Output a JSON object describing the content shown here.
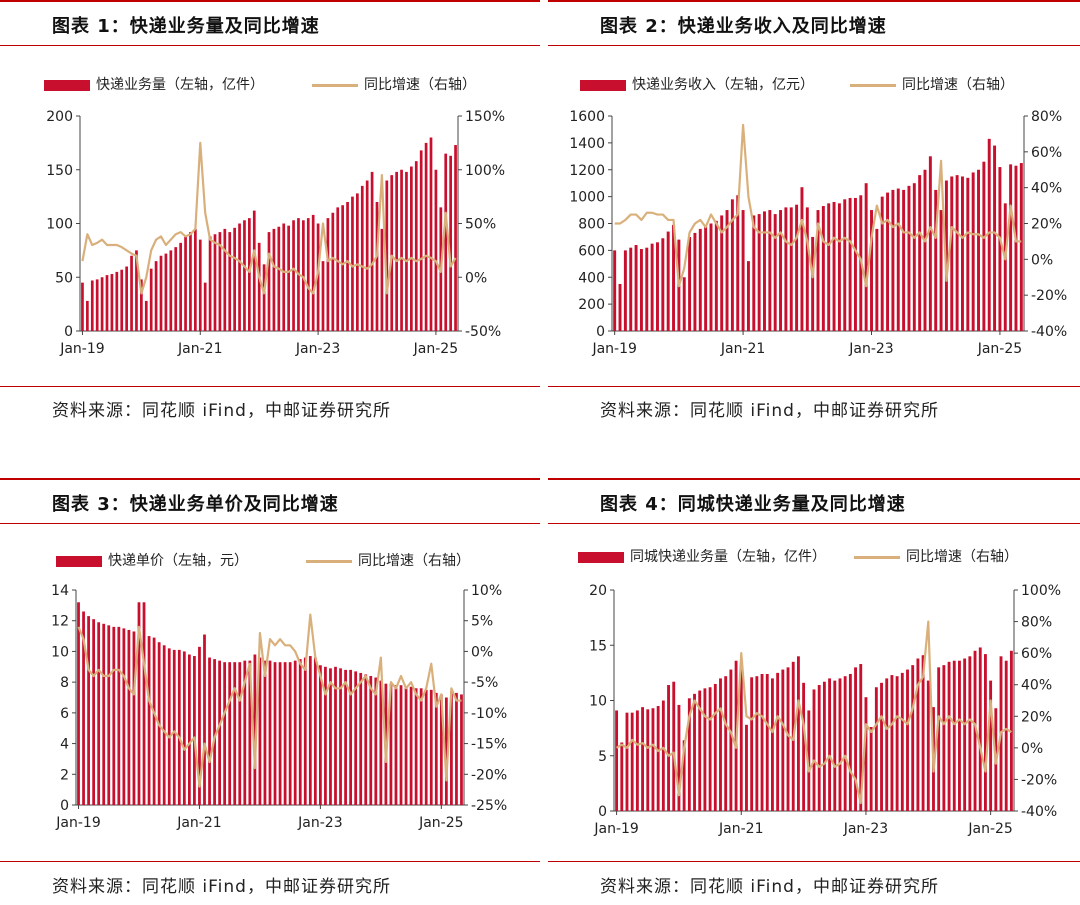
{
  "source_text": "资料来源：同花顺 iFind，中邮证券研究所",
  "chart_data": [
    {
      "type": "bar",
      "title": "图表 1：快递业务量及同比增速",
      "legend": [
        "快递业务量（左轴，亿件）",
        "同比增速（右轴）"
      ],
      "x_tick_labels": [
        "Jan-19",
        "Jan-21",
        "Jan-23",
        "Jan-25"
      ],
      "y_left": {
        "ticks": [
          "0",
          "50",
          "100",
          "150",
          "200"
        ],
        "range": [
          0,
          200
        ]
      },
      "y_right": {
        "ticks": [
          "-50%",
          "0%",
          "50%",
          "100%",
          "150%"
        ],
        "range": [
          -50,
          150
        ]
      },
      "series": [
        {
          "name": "快递业务量（左轴，亿件）",
          "type": "bar",
          "axis": "left",
          "values": [
            45,
            28,
            47,
            48,
            50,
            52,
            53,
            55,
            57,
            60,
            70,
            75,
            48,
            28,
            58,
            65,
            70,
            72,
            75,
            78,
            82,
            88,
            92,
            95,
            85,
            45,
            88,
            90,
            92,
            95,
            92,
            96,
            100,
            103,
            105,
            112,
            82,
            62,
            92,
            95,
            97,
            100,
            98,
            103,
            105,
            103,
            105,
            108,
            100,
            65,
            105,
            110,
            115,
            117,
            120,
            125,
            128,
            135,
            140,
            148,
            120,
            95,
            140,
            145,
            148,
            150,
            148,
            153,
            158,
            168,
            175,
            180,
            150,
            115,
            165,
            163,
            173
          ]
        },
        {
          "name": "同比增速（右轴）",
          "type": "line",
          "axis": "right",
          "values": [
            15,
            40,
            30,
            32,
            35,
            30,
            30,
            30,
            28,
            25,
            22,
            20,
            -15,
            0,
            25,
            35,
            38,
            30,
            35,
            40,
            42,
            38,
            40,
            45,
            125,
            60,
            35,
            32,
            30,
            25,
            20,
            18,
            15,
            10,
            5,
            25,
            0,
            -15,
            22,
            10,
            8,
            5,
            5,
            8,
            3,
            0,
            -10,
            -15,
            5,
            50,
            15,
            18,
            15,
            12,
            15,
            10,
            12,
            10,
            8,
            12,
            20,
            95,
            -15,
            20,
            15,
            18,
            15,
            18,
            15,
            17,
            20,
            18,
            15,
            5,
            60,
            10,
            18
          ]
        }
      ]
    },
    {
      "type": "bar",
      "title": "图表 2：快递业务收入及同比增速",
      "legend": [
        "快递业务收入（左轴，亿元）",
        "同比增速（右轴）"
      ],
      "x_tick_labels": [
        "Jan-19",
        "Jan-21",
        "Jan-23",
        "Jan-25"
      ],
      "y_left": {
        "ticks": [
          "0",
          "200",
          "400",
          "600",
          "800",
          "1000",
          "1200",
          "1400",
          "1600"
        ],
        "range": [
          0,
          1600
        ]
      },
      "y_right": {
        "ticks": [
          "-40%",
          "-20%",
          "0%",
          "20%",
          "40%",
          "60%",
          "80%"
        ],
        "range": [
          -40,
          80
        ]
      },
      "series": [
        {
          "name": "快递业务收入（左轴，亿元）",
          "type": "bar",
          "axis": "left",
          "values": [
            600,
            350,
            600,
            620,
            640,
            610,
            620,
            650,
            660,
            690,
            740,
            790,
            680,
            400,
            700,
            730,
            760,
            780,
            800,
            820,
            860,
            900,
            980,
            1010,
            900,
            520,
            860,
            870,
            890,
            900,
            870,
            900,
            920,
            920,
            940,
            1070,
            920,
            700,
            900,
            930,
            950,
            960,
            950,
            980,
            990,
            990,
            1010,
            1100,
            900,
            760,
            1000,
            1030,
            1050,
            1060,
            1050,
            1080,
            1100,
            1160,
            1200,
            1300,
            1050,
            900,
            1120,
            1150,
            1160,
            1150,
            1140,
            1180,
            1200,
            1260,
            1430,
            1380,
            1220,
            950,
            1240,
            1230,
            1250
          ]
        },
        {
          "name": "同比增速（右轴）",
          "type": "line",
          "axis": "right",
          "values": [
            20,
            20,
            22,
            25,
            25,
            22,
            26,
            26,
            25,
            25,
            22,
            22,
            -15,
            -5,
            15,
            20,
            22,
            18,
            25,
            20,
            15,
            18,
            22,
            25,
            75,
            35,
            18,
            15,
            15,
            15,
            12,
            15,
            10,
            8,
            12,
            22,
            10,
            -10,
            20,
            10,
            8,
            12,
            10,
            12,
            10,
            5,
            0,
            -15,
            12,
            30,
            20,
            22,
            18,
            20,
            15,
            15,
            12,
            15,
            10,
            18,
            12,
            55,
            -12,
            18,
            15,
            12,
            15,
            14,
            14,
            12,
            15,
            15,
            12,
            0,
            30,
            10,
            10
          ]
        }
      ]
    },
    {
      "type": "bar",
      "title": "图表 3：快递业务单价及同比增速",
      "legend": [
        "快递单价（左轴，元）",
        "同比增速（右轴）"
      ],
      "x_tick_labels": [
        "Jan-19",
        "Jan-21",
        "Jan-23",
        "Jan-25"
      ],
      "y_left": {
        "ticks": [
          "0",
          "2",
          "4",
          "6",
          "8",
          "10",
          "12",
          "14"
        ],
        "range": [
          0,
          14
        ]
      },
      "y_right": {
        "ticks": [
          "-25%",
          "-20%",
          "-15%",
          "-10%",
          "-5%",
          "0%",
          "5%",
          "10%"
        ],
        "range": [
          -25,
          10
        ]
      },
      "series": [
        {
          "name": "快递单价（左轴，元）",
          "type": "bar",
          "axis": "left",
          "values": [
            13.2,
            12.6,
            12.3,
            12.1,
            11.9,
            11.8,
            11.7,
            11.6,
            11.6,
            11.5,
            11.4,
            11.3,
            13.2,
            13.2,
            11.0,
            10.9,
            10.6,
            10.4,
            10.2,
            10.1,
            10.1,
            10.0,
            9.8,
            9.7,
            10.3,
            11.1,
            9.6,
            9.5,
            9.4,
            9.3,
            9.3,
            9.3,
            9.3,
            9.4,
            9.4,
            9.8,
            9.6,
            9.4,
            9.4,
            9.3,
            9.3,
            9.3,
            9.3,
            9.4,
            9.5,
            9.6,
            9.7,
            9.6,
            9.1,
            9.0,
            8.9,
            9.0,
            8.9,
            8.8,
            8.8,
            8.7,
            8.6,
            8.5,
            8.4,
            8.3,
            8.1,
            7.9,
            7.9,
            7.8,
            7.8,
            7.7,
            7.7,
            7.6,
            7.6,
            7.5,
            7.5,
            7.3,
            7.2,
            7.0,
            7.4,
            7.3,
            7.2
          ]
        },
        {
          "name": "同比增速（右轴）",
          "type": "line",
          "axis": "right",
          "values": [
            4,
            2,
            -3,
            -4,
            -3,
            -4,
            -4,
            -3,
            -3,
            -4,
            -6,
            -7,
            4,
            -2,
            -8,
            -10,
            -12,
            -13,
            -14,
            -13,
            -14,
            -16,
            -15,
            -14,
            -22,
            -15,
            -18,
            -14,
            -12,
            -10,
            -8,
            -6,
            -8,
            -5,
            -2,
            -19,
            3,
            -4,
            2,
            1,
            2,
            1,
            1,
            0,
            -2,
            -3,
            6,
            -1,
            -4,
            -7,
            -5,
            -6,
            -6,
            -5,
            -7,
            -6,
            -5,
            -4,
            -6,
            -7,
            -1,
            -18,
            -5,
            -6,
            -4,
            -6,
            -5,
            -7,
            -8,
            -6,
            -2,
            -9,
            -7,
            -21,
            -6,
            -8,
            -8
          ]
        }
      ]
    },
    {
      "type": "bar",
      "title": "图表 4：同城快递业务量及同比增速",
      "legend": [
        "同城快递业务量（左轴，亿件）",
        "同比增速（右轴）"
      ],
      "x_tick_labels": [
        "Jan-19",
        "Jan-21",
        "Jan-23",
        "Jan-25"
      ],
      "y_left": {
        "ticks": [
          "0",
          "5",
          "10",
          "15",
          "20"
        ],
        "range": [
          0,
          20
        ]
      },
      "y_right": {
        "ticks": [
          "-40%",
          "-20%",
          "0%",
          "20%",
          "40%",
          "60%",
          "80%",
          "100%"
        ],
        "range": [
          -40,
          100
        ]
      },
      "series": [
        {
          "name": "同城快递业务量（左轴，亿件）",
          "type": "bar",
          "axis": "left",
          "values": [
            9.1,
            6.2,
            8.9,
            8.9,
            9.1,
            9.4,
            9.2,
            9.3,
            9.5,
            10.0,
            11.4,
            11.7,
            9.6,
            6.4,
            10.2,
            10.6,
            10.9,
            11.1,
            11.2,
            11.5,
            12.0,
            12.2,
            12.8,
            13.6,
            13.2,
            7.8,
            12.1,
            12.2,
            12.4,
            12.4,
            12.0,
            12.5,
            12.8,
            13.0,
            13.5,
            14.0,
            11.6,
            9.1,
            11.0,
            11.4,
            11.7,
            12.0,
            11.8,
            12.0,
            12.2,
            12.4,
            13.0,
            13.3,
            10.3,
            7.6,
            11.2,
            11.6,
            12.0,
            12.3,
            12.2,
            12.5,
            12.8,
            13.2,
            13.8,
            14.1,
            11.8,
            9.4,
            13.0,
            13.2,
            13.5,
            13.6,
            13.6,
            13.8,
            14.0,
            14.5,
            14.8,
            14.2,
            11.8,
            9.3,
            14.0,
            13.6,
            14.5
          ]
        },
        {
          "name": "同比增速（右轴）",
          "type": "line",
          "axis": "right",
          "values": [
            0,
            2,
            0,
            5,
            2,
            3,
            0,
            2,
            -2,
            0,
            -5,
            -3,
            -30,
            0,
            20,
            30,
            25,
            20,
            18,
            22,
            25,
            15,
            10,
            0,
            60,
            20,
            18,
            22,
            20,
            15,
            10,
            20,
            15,
            8,
            5,
            30,
            15,
            -15,
            -8,
            -12,
            -10,
            -5,
            -12,
            -10,
            -5,
            -15,
            -20,
            -35,
            15,
            10,
            15,
            20,
            12,
            15,
            20,
            18,
            15,
            25,
            40,
            45,
            80,
            -15,
            20,
            15,
            20,
            15,
            18,
            15,
            18,
            15,
            0,
            -15,
            30,
            -10,
            10,
            12,
            10
          ]
        }
      ]
    }
  ]
}
